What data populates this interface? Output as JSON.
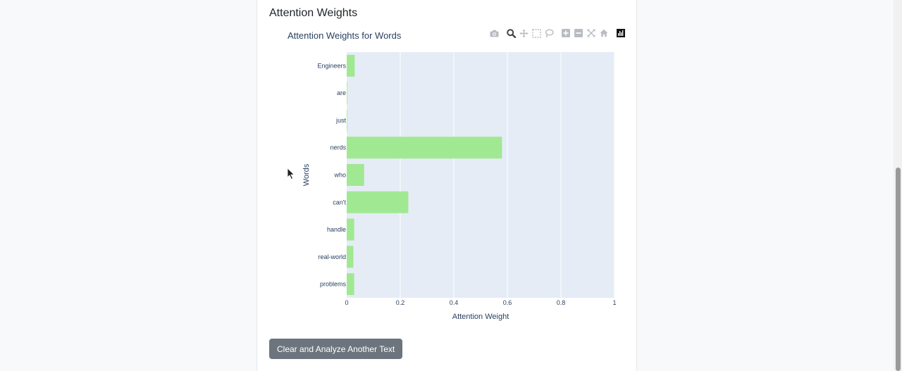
{
  "section": {
    "title": "Attention Weights"
  },
  "button": {
    "label": "Clear and Analyze Another Text"
  },
  "modebar": {
    "icons": [
      "camera-icon",
      "zoom-icon",
      "pan-icon",
      "box-select-icon",
      "lasso-icon",
      "zoom-in-icon",
      "zoom-out-icon",
      "autoscale-icon",
      "reset-axes-icon",
      "plotly-logo-icon"
    ]
  },
  "colors": {
    "bar": "#a1e893",
    "plot_bg": "#e5ecf6",
    "text": "#2a3f5f",
    "button": "#6c757d"
  },
  "chart_data": {
    "type": "bar",
    "orientation": "horizontal",
    "title": "Attention Weights for Words",
    "xlabel": "Attention Weight",
    "ylabel": "Words",
    "categories": [
      "Engineers",
      "are",
      "just",
      "nerds",
      "who",
      "can't",
      "handle",
      "real-world",
      "problems"
    ],
    "values": [
      0.03,
      0.002,
      0.002,
      0.58,
      0.065,
      0.23,
      0.028,
      0.025,
      0.028
    ],
    "xlim": [
      0,
      1
    ],
    "xticks": [
      0,
      0.2,
      0.4,
      0.6,
      0.8,
      1
    ],
    "xtick_labels": [
      "0",
      "0.2",
      "0.4",
      "0.6",
      "0.8",
      "1"
    ],
    "grid": true,
    "legend": false
  }
}
